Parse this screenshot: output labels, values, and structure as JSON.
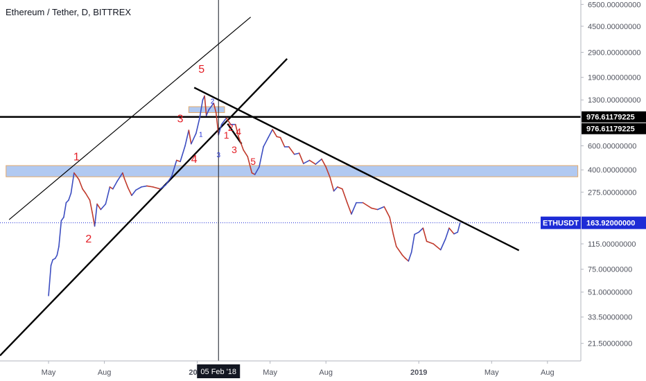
{
  "chart_title": "Ethereum / Tether, D, BITTREX",
  "crosshair_date": "05 Feb '18",
  "colors": {
    "up_candle": "#3b4cc0",
    "down_candle": "#c0392b",
    "price_line": "#1d2bd6",
    "zone_fill": "#a9c4f0",
    "zone_border": "#e0a05a",
    "wave_label": "#e31b23",
    "trendline": "#000000",
    "price_badge": "#1d2bd6",
    "level_badge": "#000000"
  },
  "chart_data": {
    "type": "line",
    "title": "Ethereum / Tether, D, BITTREX",
    "ylabel": "",
    "xlabel": "",
    "y_scale": "log",
    "ylim": [
      16,
      7000
    ],
    "xlim": [
      "2017-02-10",
      "2019-09-25"
    ],
    "x_ticks": [
      {
        "date": "2017-05-01",
        "label": "May"
      },
      {
        "date": "2017-08-01",
        "label": "Aug"
      },
      {
        "date": "2018-01-01",
        "label": "2018"
      },
      {
        "date": "2018-05-01",
        "label": "May"
      },
      {
        "date": "2018-08-01",
        "label": "Aug"
      },
      {
        "date": "2019-01-01",
        "label": "2019"
      },
      {
        "date": "2019-05-01",
        "label": "May"
      },
      {
        "date": "2019-08-01",
        "label": "Aug"
      }
    ],
    "y_ticks": [
      {
        "value": 6500,
        "label": "6500.00000000"
      },
      {
        "value": 4500,
        "label": "4500.00000000"
      },
      {
        "value": 2900,
        "label": "2900.00000000"
      },
      {
        "value": 1900,
        "label": "1900.00000000"
      },
      {
        "value": 1300,
        "label": "1300.00000000"
      },
      {
        "value": 600,
        "label": "600.00000000"
      },
      {
        "value": 400,
        "label": "400.00000000"
      },
      {
        "value": 275,
        "label": "275.00000000"
      },
      {
        "value": 115,
        "label": "115.00000000"
      },
      {
        "value": 75,
        "label": "75.00000000"
      },
      {
        "value": 51,
        "label": "51.00000000"
      },
      {
        "value": 33.5,
        "label": "33.50000000"
      },
      {
        "value": 21.5,
        "label": "21.50000000"
      }
    ],
    "series": [
      {
        "name": "ETHUSDT",
        "points": [
          [
            "2017-05-01",
            48
          ],
          [
            "2017-05-05",
            80
          ],
          [
            "2017-05-08",
            88
          ],
          [
            "2017-05-12",
            90
          ],
          [
            "2017-05-15",
            95
          ],
          [
            "2017-05-18",
            110
          ],
          [
            "2017-05-22",
            170
          ],
          [
            "2017-05-26",
            180
          ],
          [
            "2017-05-30",
            230
          ],
          [
            "2017-06-03",
            240
          ],
          [
            "2017-06-07",
            270
          ],
          [
            "2017-06-12",
            380
          ],
          [
            "2017-06-16",
            360
          ],
          [
            "2017-06-20",
            340
          ],
          [
            "2017-06-26",
            290
          ],
          [
            "2017-07-01",
            270
          ],
          [
            "2017-07-08",
            240
          ],
          [
            "2017-07-12",
            195
          ],
          [
            "2017-07-16",
            155
          ],
          [
            "2017-07-20",
            225
          ],
          [
            "2017-07-26",
            205
          ],
          [
            "2017-08-03",
            225
          ],
          [
            "2017-08-10",
            300
          ],
          [
            "2017-08-15",
            290
          ],
          [
            "2017-08-22",
            330
          ],
          [
            "2017-08-31",
            380
          ],
          [
            "2017-09-03",
            345
          ],
          [
            "2017-09-09",
            295
          ],
          [
            "2017-09-15",
            260
          ],
          [
            "2017-09-22",
            285
          ],
          [
            "2017-10-01",
            300
          ],
          [
            "2017-10-10",
            305
          ],
          [
            "2017-10-20",
            300
          ],
          [
            "2017-11-01",
            290
          ],
          [
            "2017-11-10",
            310
          ],
          [
            "2017-11-20",
            360
          ],
          [
            "2017-11-28",
            470
          ],
          [
            "2017-12-04",
            460
          ],
          [
            "2017-12-12",
            600
          ],
          [
            "2017-12-18",
            780
          ],
          [
            "2017-12-22",
            620
          ],
          [
            "2017-12-30",
            740
          ],
          [
            "2018-01-05",
            960
          ],
          [
            "2018-01-10",
            1300
          ],
          [
            "2018-01-13",
            1390
          ],
          [
            "2018-01-16",
            1000
          ],
          [
            "2018-01-20",
            1100
          ],
          [
            "2018-01-28",
            1230
          ],
          [
            "2018-02-01",
            1050
          ],
          [
            "2018-02-05",
            720
          ],
          [
            "2018-02-10",
            860
          ],
          [
            "2018-02-18",
            960
          ],
          [
            "2018-02-25",
            860
          ],
          [
            "2018-03-05",
            860
          ],
          [
            "2018-03-10",
            700
          ],
          [
            "2018-03-18",
            560
          ],
          [
            "2018-03-25",
            500
          ],
          [
            "2018-04-01",
            380
          ],
          [
            "2018-04-06",
            370
          ],
          [
            "2018-04-13",
            420
          ],
          [
            "2018-04-20",
            590
          ],
          [
            "2018-04-28",
            690
          ],
          [
            "2018-05-05",
            790
          ],
          [
            "2018-05-12",
            700
          ],
          [
            "2018-05-18",
            690
          ],
          [
            "2018-05-25",
            590
          ],
          [
            "2018-06-01",
            590
          ],
          [
            "2018-06-10",
            520
          ],
          [
            "2018-06-18",
            530
          ],
          [
            "2018-06-25",
            445
          ],
          [
            "2018-07-05",
            470
          ],
          [
            "2018-07-15",
            440
          ],
          [
            "2018-07-25",
            480
          ],
          [
            "2018-08-01",
            420
          ],
          [
            "2018-08-08",
            350
          ],
          [
            "2018-08-14",
            280
          ],
          [
            "2018-08-20",
            300
          ],
          [
            "2018-08-28",
            290
          ],
          [
            "2018-09-05",
            230
          ],
          [
            "2018-09-12",
            190
          ],
          [
            "2018-09-20",
            230
          ],
          [
            "2018-10-01",
            230
          ],
          [
            "2018-10-15",
            210
          ],
          [
            "2018-10-25",
            205
          ],
          [
            "2018-11-05",
            215
          ],
          [
            "2018-11-14",
            180
          ],
          [
            "2018-11-20",
            135
          ],
          [
            "2018-11-25",
            110
          ],
          [
            "2018-12-05",
            95
          ],
          [
            "2018-12-10",
            90
          ],
          [
            "2018-12-15",
            86
          ],
          [
            "2018-12-20",
            100
          ],
          [
            "2018-12-25",
            135
          ],
          [
            "2019-01-01",
            140
          ],
          [
            "2019-01-08",
            150
          ],
          [
            "2019-01-14",
            120
          ],
          [
            "2019-01-25",
            115
          ],
          [
            "2019-02-06",
            104
          ],
          [
            "2019-02-14",
            125
          ],
          [
            "2019-02-20",
            150
          ],
          [
            "2019-02-28",
            136
          ],
          [
            "2019-03-06",
            140
          ],
          [
            "2019-03-10",
            163.92
          ]
        ]
      }
    ],
    "last_price": {
      "label": "ETHUSDT",
      "value": "163.92000000",
      "y": 163.92
    },
    "horizontal_level": {
      "value": "976.61179225",
      "y": 976.61179225
    },
    "zones": [
      {
        "from": 356,
        "to": 430,
        "start": "2017-02-20",
        "end": "2019-09-20"
      },
      {
        "from": 1050,
        "to": 1160,
        "start": "2017-12-18",
        "end": "2018-02-15"
      }
    ],
    "trendlines": [
      {
        "p1": [
          "2017-02-10",
          17.5
        ],
        "p2": [
          "2018-05-29",
          2600
        ]
      },
      {
        "p1": [
          "2017-02-25",
          173
        ],
        "p2": [
          "2018-03-30",
          5250
        ]
      },
      {
        "p1": [
          "2017-12-27",
          1600
        ],
        "p2": [
          "2019-06-15",
          103
        ]
      },
      {
        "p1": [
          "2018-02-20",
          870
        ],
        "p2": [
          "2018-03-15",
          620
        ]
      }
    ],
    "annotations": [
      {
        "text": "1",
        "at": [
          "2017-06-16",
          470
        ],
        "size": 16
      },
      {
        "text": "2",
        "at": [
          "2017-07-06",
          118
        ],
        "size": 16
      },
      {
        "text": "3",
        "at": [
          "2017-12-04",
          890
        ],
        "size": 16
      },
      {
        "text": "4",
        "at": [
          "2017-12-27",
          450
        ],
        "size": 16
      },
      {
        "text": "5",
        "at": [
          "2018-01-08",
          2050
        ],
        "size": 16
      },
      {
        "text": "1",
        "at": [
          "2018-02-18",
          680
        ],
        "size": 14
      },
      {
        "text": "2",
        "at": [
          "2018-02-25",
          770
        ],
        "size": 14
      },
      {
        "text": "3",
        "at": [
          "2018-03-03",
          530
        ],
        "size": 14
      },
      {
        "text": "4",
        "at": [
          "2018-03-10",
          720
        ],
        "size": 14
      },
      {
        "text": "5",
        "at": [
          "2018-04-03",
          435
        ],
        "size": 14
      }
    ],
    "sub_annotations": [
      {
        "text": "1",
        "at": [
          "2018-01-07",
          700
        ]
      },
      {
        "text": "2",
        "at": [
          "2018-01-26",
          1220
        ]
      },
      {
        "text": "3",
        "at": [
          "2018-02-05",
          495
        ]
      }
    ]
  }
}
